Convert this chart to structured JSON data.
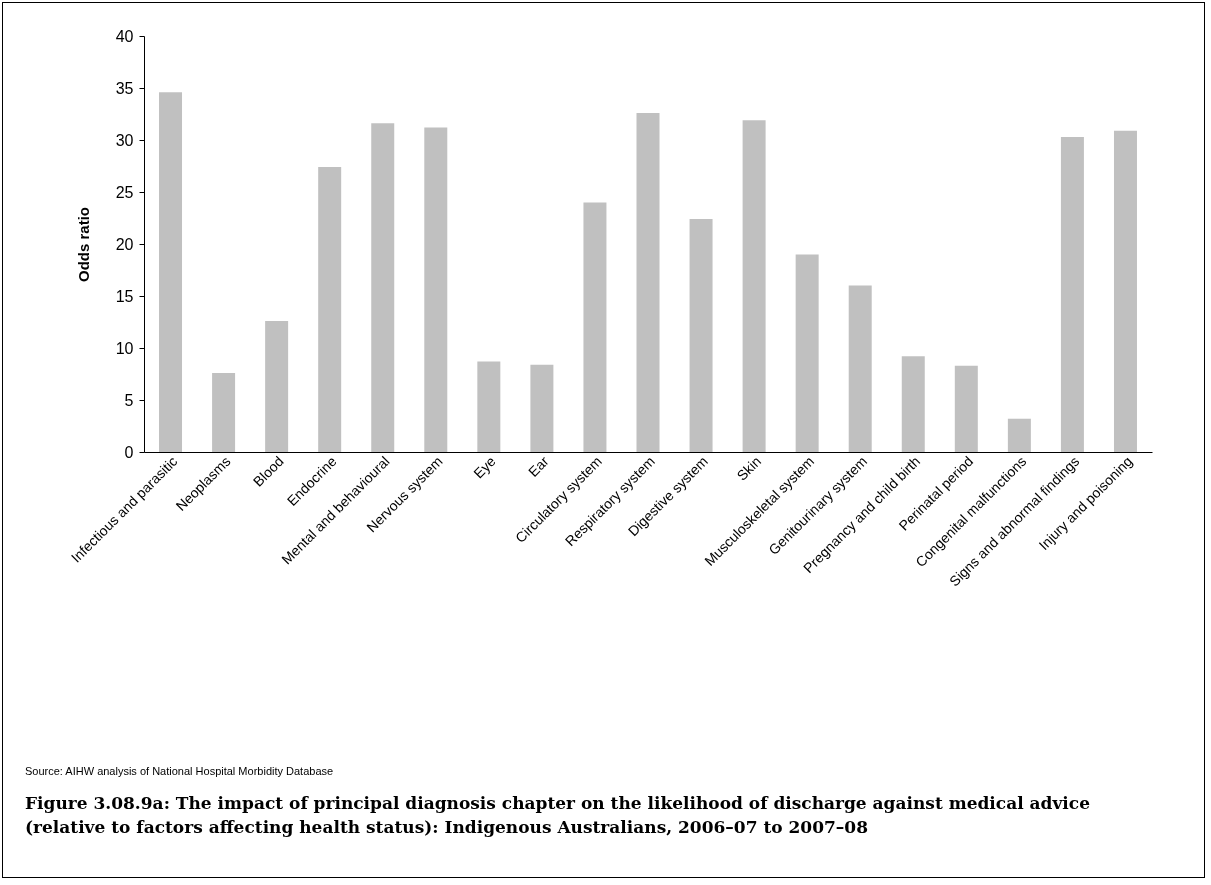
{
  "chart_data": {
    "type": "bar",
    "title": "Figure 3.08.9a: The impact of principal diagnosis chapter on the likelihood of discharge against medical advice (relative to factors affecting health status): Indigenous Australians, 2006–07 to 2007–08",
    "ylabel": "Odds ratio",
    "categories": [
      "Infectious and parasitic",
      "Neoplasms",
      "Blood",
      "Endocrine",
      "Mental and behavioural",
      "Nervous system",
      "Eye",
      "Ear",
      "Circulatory system",
      "Respiratory system",
      "Digestive system",
      "Skin",
      "Musculoskeletal system",
      "Genitourinary system",
      "Pregnancy and child birth",
      "Perinatal period",
      "Congenital malfunctions",
      "Signs and abnormal findings",
      "Injury and poisoning"
    ],
    "values": [
      34.6,
      7.6,
      12.6,
      27.4,
      31.6,
      31.2,
      8.7,
      8.4,
      24.0,
      32.6,
      22.4,
      31.9,
      19.0,
      16.0,
      9.2,
      8.3,
      3.2,
      30.3,
      30.9
    ],
    "color": "#c0c0c0",
    "ylim": [
      0,
      40
    ],
    "yticks": [
      0,
      5,
      10,
      15,
      20,
      25,
      30,
      35,
      40
    ],
    "grid": false,
    "annotations": [
      "Source: AIHW analysis of National Hospital Morbidity Database"
    ]
  }
}
